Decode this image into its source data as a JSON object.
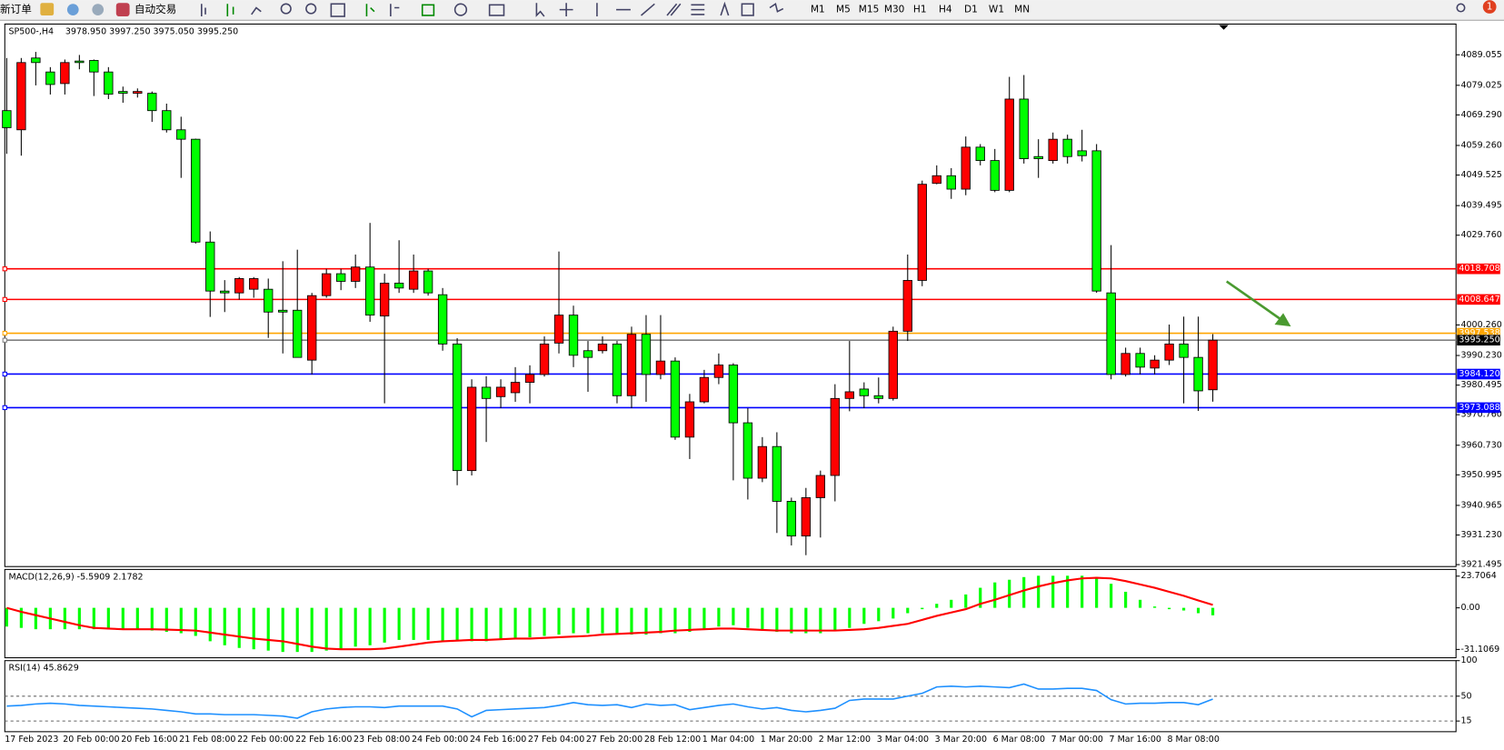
{
  "toolbar": {
    "new_order": "新订单",
    "auto_trading": "自动交易",
    "timeframes": [
      "M1",
      "M5",
      "M15",
      "M30",
      "H1",
      "H4",
      "D1",
      "W1",
      "MN"
    ],
    "notifications": "1"
  },
  "chart_data": [
    {
      "type": "candlestick",
      "title": "SP500-,H4",
      "info": "3978.950 3997.250 3975.050 3995.250",
      "categories": [
        "17 Feb 2023",
        null,
        null,
        null,
        "20 Feb 00:00",
        null,
        null,
        null,
        "20 Feb 16:00",
        null,
        null,
        null,
        "21 Feb 08:00",
        null,
        null,
        null,
        "22 Feb 00:00",
        null,
        null,
        null,
        "22 Feb 16:00",
        null,
        null,
        null,
        "23 Feb 08:00",
        null,
        null,
        null,
        "24 Feb 00:00",
        null,
        null,
        null,
        "24 Feb 16:00",
        null,
        null,
        null,
        "27 Feb 04:00",
        null,
        null,
        null,
        "27 Feb 20:00",
        null,
        null,
        null,
        "28 Feb 12:00",
        null,
        null,
        null,
        "1 Mar 04:00",
        null,
        null,
        null,
        "1 Mar 20:00",
        null,
        null,
        null,
        "2 Mar 12:00",
        null,
        null,
        null,
        "3 Mar 04:00",
        null,
        null,
        null,
        "3 Mar 20:00",
        null,
        null,
        null,
        "6 Mar 08:00",
        null,
        null,
        null,
        "7 Mar 00:00",
        null,
        null,
        null,
        "7 Mar 16:00",
        null,
        null,
        null,
        "8 Mar 08:00",
        null,
        null,
        null
      ],
      "open": [
        4070.7,
        4064.4,
        4088,
        4083.4,
        4079.6,
        4087,
        4087.2,
        4083.4,
        4077,
        4076.4,
        4076.4,
        4070.7,
        4064.4,
        4061.3,
        4027.5,
        4011.4,
        4010.8,
        4012,
        4012,
        4005.1,
        4005.1,
        3988.7,
        4009.9,
        4017.1,
        4014.6,
        4019.3,
        4003.2,
        4014,
        4012,
        4018,
        4010.2,
        3994,
        3952.4,
        3979.8,
        3976.7,
        3978,
        3981.4,
        3984,
        3994.3,
        4003.5,
        3991.8,
        3991.8,
        3994,
        3977,
        3997.2,
        3984,
        3988.4,
        3963.4,
        3975,
        3983,
        3987.1,
        3968.1,
        3949.9,
        3960.3,
        3942.3,
        3930.9,
        3943.5,
        3950.8,
        3976.1,
        3979.2,
        3977,
        3976.1,
        3998.2,
        4014.9,
        4046.8,
        4049.3,
        4044.9,
        4058.7,
        4054.3,
        4044.5,
        4074.5,
        4055.6,
        4054.3,
        4061.3,
        4057.5,
        4057.5,
        4010.8,
        3984,
        3990.9,
        3986.1,
        3988.7,
        3994,
        3989.6,
        3978.95
      ],
      "high": [
        4088,
        4088,
        4090,
        4085,
        4087.5,
        4089,
        4087.5,
        4085,
        4078.6,
        4078,
        4077,
        4073,
        4068.7,
        4061.5,
        4031,
        4015,
        4016,
        4016,
        4015.5,
        4021.2,
        4025,
        4010.8,
        4018.7,
        4018.7,
        4023.4,
        4033.8,
        4017.1,
        4028.1,
        4023.4,
        4018.7,
        4012.4,
        3995.9,
        3982.4,
        3983.4,
        3982.4,
        3986.4,
        3987,
        3996.5,
        4024.4,
        4006.6,
        3995,
        3996.5,
        3995,
        3999.7,
        4003.5,
        4003.5,
        3989.6,
        3977.6,
        3985.5,
        3990.9,
        3987.7,
        3972.9,
        3963.4,
        3965,
        3943.5,
        3946.7,
        3952.4,
        3980.8,
        3995,
        3981.4,
        3983,
        3999.7,
        4023.4,
        4047.7,
        4052.7,
        4051.8,
        4062.2,
        4059.7,
        4058.1,
        4081.8,
        4082.4,
        4061.3,
        4063.5,
        4062.8,
        4064.4,
        4059.7,
        4026.5,
        3992.8,
        3992.8,
        3990.3,
        4000.4,
        4003,
        4003,
        3997.25
      ],
      "low": [
        4056.5,
        4055.9,
        4079,
        4076,
        4076,
        4084.3,
        4075.5,
        4074.5,
        4073.3,
        4075,
        4067,
        4063.5,
        4048.6,
        4027,
        4002.9,
        4004.5,
        4008.6,
        4009.2,
        3996,
        3990.9,
        3989.6,
        3984,
        4009.2,
        4011.7,
        4012.4,
        4001.3,
        3974.5,
        4010.8,
        4010.8,
        4009.9,
        3991.8,
        3947.6,
        3950.8,
        3961.8,
        3972.9,
        3975,
        3974.5,
        3983.3,
        3990.9,
        3986.4,
        3978.3,
        3990.9,
        3974.5,
        3972.9,
        3975,
        3982.4,
        3962.5,
        3956.2,
        3974.5,
        3980.8,
        3949.2,
        3942.9,
        3948.6,
        3931.9,
        3927.8,
        3924.6,
        3930.4,
        3942.3,
        3971.9,
        3972.9,
        3974.5,
        3975.4,
        3995,
        4013,
        4046.5,
        4041.7,
        4042.9,
        4052.7,
        4043.9,
        4043.9,
        4053.3,
        4048.6,
        4053.3,
        4053.3,
        4054,
        4010.8,
        3982.4,
        3983.3,
        3984,
        3984,
        3987.1,
        3974.5,
        3972,
        3975.05
      ],
      "close": [
        4065.1,
        4086.5,
        4086.5,
        4079.3,
        4086.5,
        4086.5,
        4083.4,
        4076.1,
        4076.4,
        4077,
        4070.7,
        4064.4,
        4061.3,
        4027.5,
        4011.4,
        4010.8,
        4015.5,
        4015.5,
        4004.5,
        4004.5,
        3989.6,
        4009.9,
        4017.1,
        4014.6,
        4019.3,
        4003.5,
        4014,
        4012.4,
        4018,
        4010.8,
        3994,
        3952.4,
        3979.8,
        3976.1,
        3979.8,
        3981.4,
        3984,
        3994,
        4003.5,
        3990.3,
        3989.6,
        3994,
        3977,
        3997.2,
        3984,
        3988.4,
        3963.4,
        3975,
        3983,
        3987.1,
        3968.1,
        3949.9,
        3960.3,
        3942.3,
        3930.9,
        3943.5,
        3950.8,
        3976.1,
        3978.3,
        3977,
        3976.1,
        3998.2,
        4014.9,
        4046.5,
        4049.3,
        4044.9,
        4058.7,
        4054.3,
        4044.5,
        4074.5,
        4054.9,
        4054.9,
        4061.3,
        4055.6,
        4055.9,
        4011.4,
        3984,
        3990.9,
        3986.4,
        3988.7,
        3994,
        3989.6,
        3978.6,
        3995.25
      ],
      "up_color": "#ff0000",
      "down_color": "#00ff00",
      "ylim": [
        3920.86,
        4099.15
      ],
      "yticks": [
        4089.055,
        4079.025,
        {
          "value": 4069.29,
          "label": "4069.290"
        },
        {
          "value": 4059.26,
          "label": "4059.260"
        },
        4049.525,
        4039.495,
        {
          "value": 4029.76,
          "label": "4029.760"
        },
        {
          "value": 4000.26,
          "label": "4000.260"
        },
        {
          "value": 3990.23,
          "label": "3990.230"
        },
        3980.495,
        {
          "value": 3970.76,
          "label": "3970.760"
        },
        {
          "value": 3960.73,
          "label": "3960.730"
        },
        3950.995,
        3940.965,
        {
          "value": 3931.23,
          "label": "3931.230"
        },
        3921.495
      ],
      "hlines": [
        {
          "value": 4018.708,
          "color": "#ff0000"
        },
        {
          "value": 4008.647,
          "color": "#ff0000"
        },
        {
          "value": 3997.538,
          "color": "#ffa500"
        },
        {
          "value": 3995.25,
          "label": "3995.250",
          "color": "#808080"
        },
        {
          "value": 3984.12,
          "label": "3984.120",
          "color": "#0000ff"
        },
        {
          "value": 3973.088,
          "color": "#0000ff"
        }
      ]
    },
    {
      "type": "macd",
      "title": "MACD(12,26,9) -5.5909 2.1782",
      "series": [
        {
          "color": "#00ff00",
          "values": [
            -14,
            -15,
            -16,
            -16,
            -16,
            -16,
            -16,
            -16,
            -16,
            -16,
            -17,
            -18,
            -19,
            -21,
            -25,
            -28,
            -30,
            -31,
            -32,
            -33,
            -33,
            -33,
            -32,
            -31,
            -29,
            -28,
            -26,
            -24,
            -24,
            -24,
            -25,
            -25,
            -25,
            -25,
            -24,
            -23,
            -22,
            -21,
            -20,
            -19,
            -19,
            -19,
            -19,
            -20,
            -20,
            -19,
            -19,
            -18,
            -16,
            -14,
            -13,
            -15,
            -17,
            -18,
            -19,
            -19,
            -19,
            -17,
            -15,
            -12,
            -10,
            -8,
            -4,
            -1,
            3,
            6,
            10,
            15,
            19,
            21,
            23,
            24,
            24,
            24,
            24,
            23,
            18,
            12,
            6,
            1,
            -1,
            -2,
            -4,
            -5.5909
          ]
        },
        {
          "color": "#ff0000",
          "values": [
            0,
            -3,
            -5.5,
            -8,
            -10.5,
            -13,
            -15,
            -15.5,
            -16,
            -16,
            -16,
            -16.3,
            -16.6,
            -17,
            -18.5,
            -20,
            -21.5,
            -23,
            -24,
            -25,
            -27,
            -29,
            -30.5,
            -31,
            -31,
            -31,
            -30.5,
            -29,
            -27.5,
            -26,
            -25,
            -24.5,
            -24,
            -24,
            -23.5,
            -23,
            -23,
            -22.5,
            -22,
            -21.5,
            -21,
            -20,
            -19.5,
            -19,
            -18.5,
            -18,
            -17,
            -16.5,
            -16,
            -15.5,
            -15.5,
            -16,
            -16.5,
            -17,
            -17,
            -17,
            -17,
            -17,
            -16.5,
            -16,
            -15,
            -13.5,
            -12,
            -9,
            -6,
            -3.5,
            -1,
            3,
            6,
            9.5,
            13,
            16,
            18.5,
            20.5,
            22,
            22.5,
            22,
            20,
            17.5,
            15,
            12,
            9,
            5.5,
            2.1782
          ]
        }
      ],
      "ylim": [
        -37.34,
        28.72
      ],
      "yticks": [
        23.7064,
        {
          "value": 0,
          "label": "0.00"
        },
        -31.1069
      ]
    },
    {
      "type": "line",
      "title": "RSI(14) 45.8629",
      "series": [
        {
          "color": "#1e90ff",
          "values": [
            36,
            37,
            39,
            40,
            39,
            37,
            36,
            35,
            34,
            33,
            32,
            30,
            28,
            25,
            25,
            24,
            24,
            24,
            23,
            22,
            19,
            28,
            32,
            34,
            35,
            35,
            34,
            36,
            36,
            36,
            36,
            32,
            21,
            30,
            31,
            32,
            33,
            34,
            37,
            41,
            38,
            37,
            38,
            34,
            39,
            37,
            38,
            31,
            34,
            37,
            39,
            35,
            32,
            34,
            30,
            28,
            30,
            33,
            44,
            46,
            46,
            46,
            50,
            54,
            63,
            64,
            63,
            64,
            63,
            62,
            67,
            60,
            60,
            61,
            61,
            58,
            45,
            39,
            40,
            40,
            41,
            41,
            38,
            45.8629
          ]
        }
      ],
      "ylim": [
        0,
        100
      ],
      "yticks": [
        100,
        50,
        15
      ]
    }
  ]
}
